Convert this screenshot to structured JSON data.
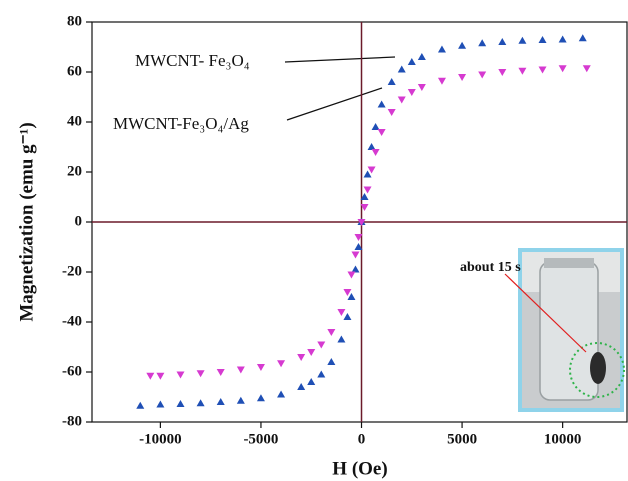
{
  "chart_data": {
    "type": "scatter",
    "x_label": "H (Oe)",
    "y_label": "Magnetization (emu g⁻¹)",
    "xlim": [
      -13400,
      13200
    ],
    "ylim": [
      -80,
      80
    ],
    "xticks": [
      -10000,
      -5000,
      0,
      5000,
      10000
    ],
    "yticks": [
      -80,
      -60,
      -40,
      -20,
      0,
      20,
      40,
      60,
      80
    ],
    "zero_line_color": "#6b1a2a",
    "series": [
      {
        "name": "MWCNT- Fe₃O₄",
        "color": "#1f4fb5",
        "marker": "triangle-up",
        "x": [
          -11000,
          -10000,
          -9000,
          -8000,
          -7000,
          -6000,
          -5000,
          -4000,
          -3000,
          -2500,
          -2000,
          -1500,
          -1000,
          -700,
          -500,
          -300,
          -150,
          0,
          150,
          300,
          500,
          700,
          1000,
          1500,
          2000,
          2500,
          3000,
          4000,
          5000,
          6000,
          7000,
          8000,
          9000,
          10000,
          11000
        ],
        "values": [
          -73.5,
          -73,
          -72.8,
          -72.5,
          -72,
          -71.5,
          -70.5,
          -69,
          -66,
          -64,
          -61,
          -56,
          -47,
          -38,
          -30,
          -19,
          -10,
          0,
          10,
          19,
          30,
          38,
          47,
          56,
          61,
          64,
          66,
          69,
          70.5,
          71.5,
          72,
          72.5,
          72.8,
          73,
          73.5
        ]
      },
      {
        "name": "MWCNT-Fe₃O₄/Ag",
        "color": "#d63ad0",
        "marker": "triangle-down",
        "x": [
          -10500,
          -10000,
          -9000,
          -8000,
          -7000,
          -6000,
          -5000,
          -4000,
          -3000,
          -2500,
          -2000,
          -1500,
          -1000,
          -700,
          -500,
          -300,
          -150,
          0,
          150,
          300,
          500,
          700,
          1000,
          1500,
          2000,
          2500,
          3000,
          4000,
          5000,
          6000,
          7000,
          8000,
          9000,
          10000,
          11200
        ],
        "values": [
          -61.5,
          -61.5,
          -61,
          -60.5,
          -60,
          -59,
          -58,
          -56.5,
          -54,
          -52,
          -49,
          -44,
          -36,
          -28,
          -21,
          -13,
          -6,
          0,
          6,
          13,
          21,
          28,
          36,
          44,
          49,
          52,
          54,
          56.5,
          58,
          59,
          60,
          60.5,
          61,
          61.5,
          61.5
        ]
      }
    ],
    "inset_label": "about 15 s"
  }
}
